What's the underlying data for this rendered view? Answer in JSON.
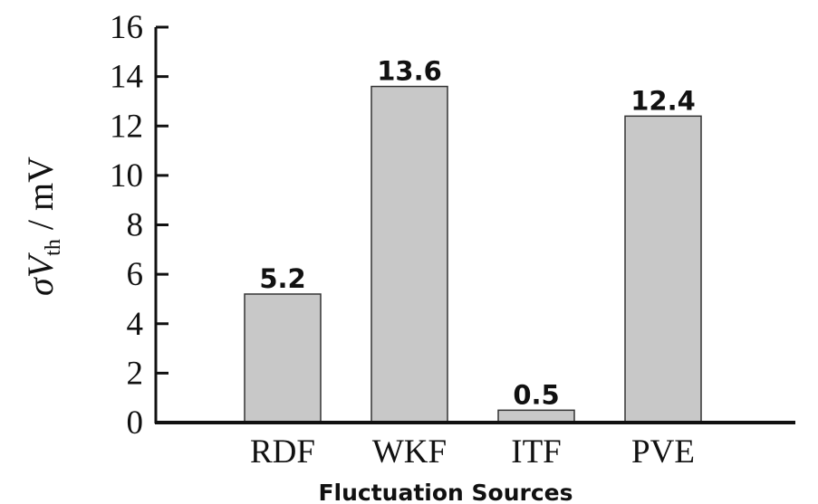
{
  "chart_data": {
    "type": "bar",
    "categories": [
      "RDF",
      "WKF",
      "ITF",
      "PVE"
    ],
    "values": [
      5.2,
      13.6,
      0.5,
      12.4
    ],
    "data_labels": [
      "5.2",
      "13.6",
      "0.5",
      "12.4"
    ],
    "xlabel": "Fluctuation Sources",
    "ylabel": {
      "symbol": "σ",
      "var": "V",
      "subscript": "th",
      "unit": " / mV"
    },
    "ylim": [
      0,
      16
    ],
    "yticks": [
      0,
      2,
      4,
      6,
      8,
      10,
      12,
      14,
      16
    ],
    "grid": false,
    "legend": "none",
    "bar_color": "#c8c8c8",
    "bar_edge_color": "#333333",
    "axis_color": "#111111"
  }
}
